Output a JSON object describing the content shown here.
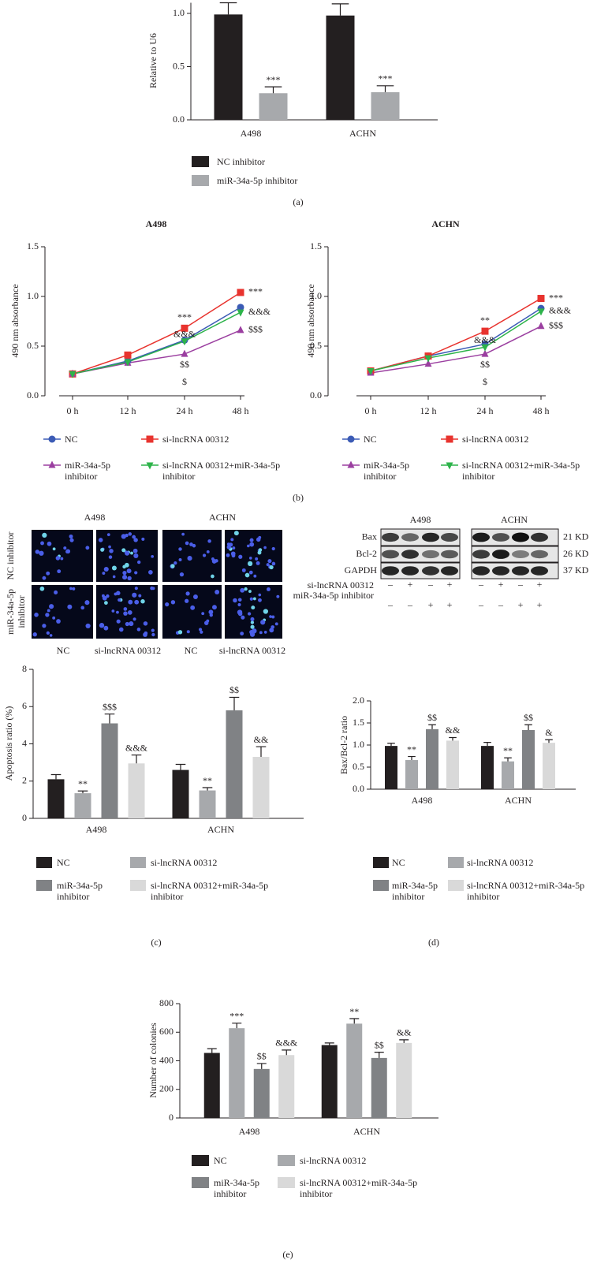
{
  "chart_data": [
    {
      "type": "bar",
      "ylabel": "Relative to U6",
      "categories": [
        "A498",
        "ACHN"
      ],
      "series": [
        {
          "name": "NC inhibitor",
          "color": "#231f20",
          "values": [
            0.99,
            0.98
          ],
          "errors": [
            0.11,
            0.11
          ]
        },
        {
          "name": "miR-34a-5p inhibitor",
          "color": "#a7a9ac",
          "values": [
            0.25,
            0.26
          ],
          "errors": [
            0.06,
            0.06
          ],
          "annotations": [
            "***",
            "***"
          ]
        }
      ],
      "ylim": [
        0,
        1.1
      ],
      "yticks": [
        {
          "value": 0,
          "label": "0.0"
        },
        0.5,
        {
          "value": 1,
          "label": "1.0"
        }
      ],
      "caption": "(a)"
    },
    {
      "type": "line",
      "title": "A498",
      "ylabel": "490 nm absorbance",
      "categories": [
        "0 h",
        "12 h",
        "24 h",
        "48 h"
      ],
      "series": [
        {
          "name": "NC",
          "color": "#3b5bb5",
          "marker": "circle",
          "values": [
            0.22,
            0.35,
            0.56,
            0.89
          ],
          "annotations": [
            null,
            null,
            "$",
            null
          ]
        },
        {
          "name": "si-lncRNA 00312",
          "color": "#e8332e",
          "marker": "square",
          "values": [
            0.22,
            0.41,
            0.68,
            1.04
          ],
          "annotations": [
            null,
            null,
            "***",
            "***"
          ]
        },
        {
          "name": "miR-34a-5p inhibitor",
          "color": "#9b3fa0",
          "marker": "triangle-up",
          "values": [
            0.22,
            0.33,
            0.42,
            0.66
          ],
          "annotations": [
            null,
            null,
            "$$",
            "$$$"
          ]
        },
        {
          "name": "si-lncRNA 00312+miR-34a-5p inhibitor",
          "color": "#2db34a",
          "marker": "triangle-down",
          "values": [
            0.22,
            0.34,
            0.55,
            0.84
          ],
          "annotations": [
            null,
            null,
            "&&&",
            "&&&"
          ]
        }
      ],
      "ylim": [
        0,
        1.5
      ],
      "yticks": [
        {
          "value": 0,
          "label": "0.0"
        },
        0.5,
        {
          "value": 1,
          "label": "1.0"
        },
        1.5
      ],
      "caption": "(b)"
    },
    {
      "type": "line",
      "title": "ACHN",
      "ylabel": "490 nm absorbance",
      "categories": [
        "0 h",
        "12 h",
        "24 h",
        "48 h"
      ],
      "series": [
        {
          "name": "NC",
          "color": "#3b5bb5",
          "marker": "circle",
          "values": [
            0.25,
            0.4,
            0.52,
            0.88
          ],
          "annotations": [
            null,
            null,
            "$",
            null
          ]
        },
        {
          "name": "si-lncRNA 00312",
          "color": "#e8332e",
          "marker": "square",
          "values": [
            0.25,
            0.4,
            0.65,
            0.98
          ],
          "annotations": [
            null,
            null,
            "**",
            "***"
          ]
        },
        {
          "name": "miR-34a-5p inhibitor",
          "color": "#9b3fa0",
          "marker": "triangle-up",
          "values": [
            0.23,
            0.32,
            0.42,
            0.7
          ],
          "annotations": [
            null,
            null,
            "$$",
            "$$$"
          ]
        },
        {
          "name": "si-lncRNA 00312+miR-34a-5p inhibitor",
          "color": "#2db34a",
          "marker": "triangle-down",
          "values": [
            0.25,
            0.38,
            0.49,
            0.85
          ],
          "annotations": [
            null,
            null,
            "&&&",
            "&&&"
          ]
        }
      ],
      "ylim": [
        0,
        1.5
      ],
      "yticks": [
        {
          "value": 0,
          "label": "0.0"
        },
        0.5,
        {
          "value": 1,
          "label": "1.0"
        },
        1.5
      ]
    },
    {
      "type": "bar",
      "ylabel": "Apoptosis ratio (%)",
      "categories": [
        "A498",
        "ACHN"
      ],
      "series": [
        {
          "name": "NC",
          "color": "#231f20",
          "values": [
            2.1,
            2.6
          ],
          "errors": [
            0.25,
            0.3
          ]
        },
        {
          "name": "si-lncRNA 00312",
          "color": "#a7a9ac",
          "values": [
            1.35,
            1.5
          ],
          "errors": [
            0.12,
            0.15
          ],
          "annotations": [
            "**",
            "**"
          ]
        },
        {
          "name": "miR-34a-5p inhibitor",
          "color": "#808285",
          "values": [
            5.1,
            5.8
          ],
          "errors": [
            0.5,
            0.7
          ],
          "annotations": [
            "$$$",
            "$$"
          ]
        },
        {
          "name": "si-lncRNA 00312+miR-34a-5p inhibitor",
          "color": "#d9d9d9",
          "values": [
            2.95,
            3.3
          ],
          "errors": [
            0.45,
            0.55
          ],
          "annotations": [
            "&&&",
            "&&"
          ]
        }
      ],
      "ylim": [
        0,
        8
      ],
      "yticks": [
        0,
        2,
        4,
        6,
        8
      ],
      "caption": "(c)"
    },
    {
      "type": "bar",
      "ylabel": "Bax/Bcl-2 ratio",
      "categories": [
        "A498",
        "ACHN"
      ],
      "series": [
        {
          "name": "NC",
          "color": "#231f20",
          "values": [
            0.98,
            0.98
          ],
          "errors": [
            0.06,
            0.08
          ]
        },
        {
          "name": "si-lncRNA 00312",
          "color": "#a7a9ac",
          "values": [
            0.66,
            0.63
          ],
          "errors": [
            0.08,
            0.08
          ],
          "annotations": [
            "**",
            "**"
          ]
        },
        {
          "name": "miR-34a-5p inhibitor",
          "color": "#808285",
          "values": [
            1.36,
            1.34
          ],
          "errors": [
            0.1,
            0.12
          ],
          "annotations": [
            "$$",
            "$$"
          ]
        },
        {
          "name": "si-lncRNA 00312+miR-34a-5p inhibitor",
          "color": "#d9d9d9",
          "values": [
            1.1,
            1.05
          ],
          "errors": [
            0.07,
            0.07
          ],
          "annotations": [
            "&&",
            "&"
          ]
        }
      ],
      "ylim": [
        0,
        2
      ],
      "yticks": [
        {
          "value": 0,
          "label": "0.0"
        },
        0.5,
        {
          "value": 1,
          "label": "1.0"
        },
        1.5,
        {
          "value": 2,
          "label": "2.0"
        }
      ],
      "caption": "(d)"
    },
    {
      "type": "bar",
      "ylabel": "Number of colonies",
      "categories": [
        "A498",
        "ACHN"
      ],
      "series": [
        {
          "name": "NC",
          "color": "#231f20",
          "values": [
            455,
            510
          ],
          "errors": [
            30,
            15
          ]
        },
        {
          "name": "si-lncRNA 00312",
          "color": "#a7a9ac",
          "values": [
            628,
            660
          ],
          "errors": [
            35,
            35
          ],
          "annotations": [
            "***",
            "**"
          ]
        },
        {
          "name": "miR-34a-5p inhibitor",
          "color": "#808285",
          "values": [
            343,
            420
          ],
          "errors": [
            38,
            40
          ],
          "annotations": [
            "$$",
            "$$"
          ]
        },
        {
          "name": "si-lncRNA 00312+miR-34a-5p inhibitor",
          "color": "#d9d9d9",
          "values": [
            440,
            525
          ],
          "errors": [
            35,
            22
          ],
          "annotations": [
            "&&&",
            "&&"
          ]
        }
      ],
      "ylim": [
        0,
        800
      ],
      "yticks": [
        0,
        200,
        400,
        600,
        800
      ],
      "caption": "(e)"
    }
  ],
  "micrographs": {
    "groups": [
      "A498",
      "ACHN"
    ],
    "rows": [
      "NC inhibitor",
      "miR-34a-5p inhibitor"
    ],
    "columns": [
      "NC",
      "si-lncRNA 00312",
      "NC",
      "si-lncRNA 00312"
    ]
  },
  "western_blot": {
    "groups": [
      "A498",
      "ACHN"
    ],
    "proteins": [
      "Bax",
      "Bcl-2",
      "GAPDH"
    ],
    "sizes": [
      "21 KD",
      "26 KD",
      "37 KD"
    ],
    "conditions": [
      {
        "name": "si-lncRNA 00312",
        "signs": [
          "–",
          "+",
          "–",
          "+",
          "–",
          "+",
          "–",
          "+"
        ]
      },
      {
        "name": "miR-34a-5p inhibitor",
        "signs": [
          "–",
          "–",
          "+",
          "+",
          "–",
          "–",
          "+",
          "+"
        ]
      }
    ]
  }
}
